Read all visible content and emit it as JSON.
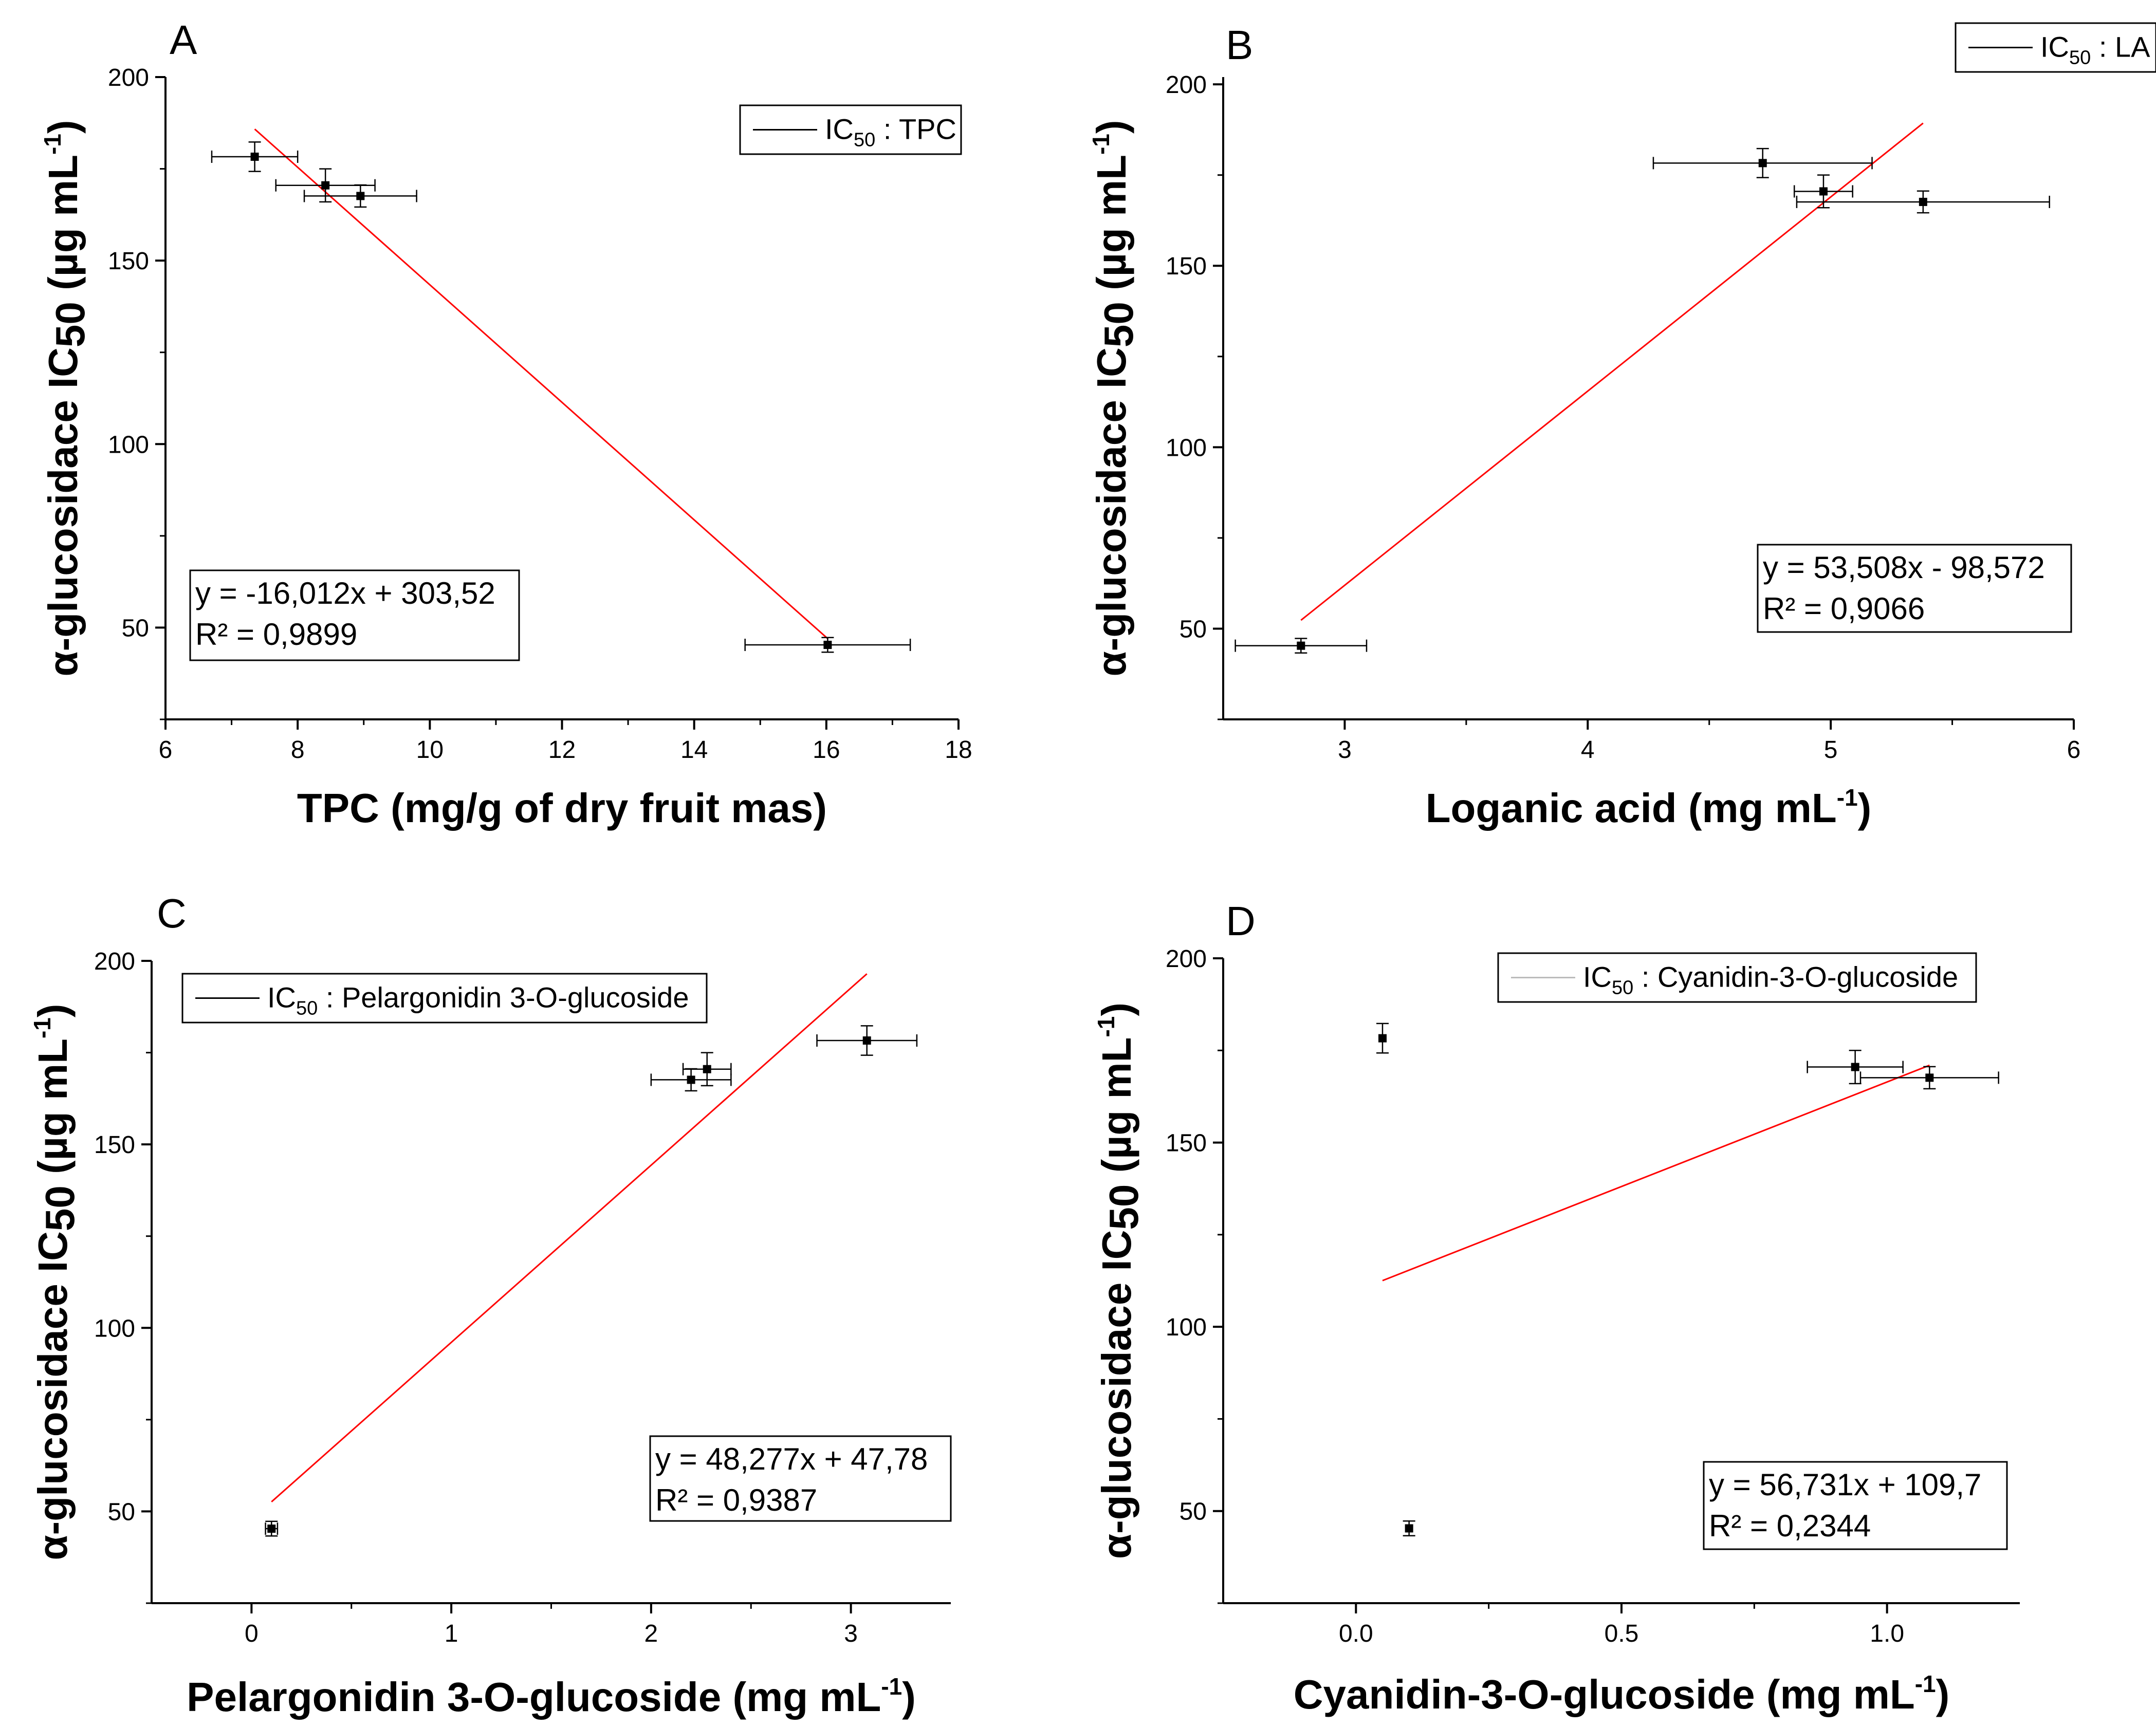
{
  "figure": {
    "y_axis_title_prefix": "α-glucosidace IC",
    "y_axis_title_sub": "50",
    "y_axis_title_unit": " (µg mL",
    "y_axis_title_unit_sup": "-1",
    "y_axis_title_close": ")",
    "colors": {
      "fit_line": "#ff0000",
      "points": "#000000",
      "axes": "#000000",
      "legend_line": "#000000",
      "legend_line_d": "#bbbbbb"
    }
  },
  "chart_data": [
    {
      "panel": "A",
      "type": "scatter",
      "x_title_text": "TPC (mg/g of dry fruit mas)",
      "x_title_sup": "",
      "x_title_close": "",
      "xlim": [
        6,
        18
      ],
      "ylim": [
        25,
        200
      ],
      "xticks": [
        6,
        8,
        10,
        12,
        14,
        16,
        18
      ],
      "xtick_labels": [
        "6",
        "8",
        "10",
        "12",
        "14",
        "16",
        "18"
      ],
      "yticks": [
        50,
        100,
        150,
        200
      ],
      "ytick_labels": [
        "50",
        "100",
        "150",
        "200"
      ],
      "legend": {
        "prefix": "IC",
        "sub": "50",
        "suffix": " : TPC"
      },
      "points": [
        {
          "x": 7.35,
          "y": 178.3,
          "xerr": 0.65,
          "yerr": 4.0
        },
        {
          "x": 8.42,
          "y": 170.5,
          "xerr": 0.75,
          "yerr": 4.5
        },
        {
          "x": 8.95,
          "y": 167.6,
          "xerr": 0.85,
          "yerr": 3.0
        },
        {
          "x": 16.02,
          "y": 45.3,
          "xerr": 1.25,
          "yerr": 2.0
        }
      ],
      "fit": {
        "slope": -16.012,
        "intercept": 303.52,
        "x_range": [
          7.35,
          16.02
        ]
      },
      "equation": "y = -16,012x + 303,52",
      "r2": "R² = 0,9899"
    },
    {
      "panel": "B",
      "type": "scatter",
      "x_title_text": "Loganic acid (mg mL",
      "x_title_sup": "-1",
      "x_title_close": ")",
      "xlim": [
        2.5,
        6
      ],
      "ylim": [
        25,
        202
      ],
      "xticks": [
        3,
        4,
        5,
        6
      ],
      "xtick_labels": [
        "3",
        "4",
        "5",
        "6"
      ],
      "yticks": [
        50,
        100,
        150,
        200
      ],
      "ytick_labels": [
        "50",
        "100",
        "150",
        "200"
      ],
      "legend": {
        "prefix": "IC",
        "sub": "50",
        "suffix": " : LA"
      },
      "points": [
        {
          "x": 2.82,
          "y": 45.3,
          "xerr": 0.27,
          "yerr": 2.0
        },
        {
          "x": 4.72,
          "y": 178.3,
          "xerr": 0.45,
          "yerr": 4.0
        },
        {
          "x": 4.97,
          "y": 170.5,
          "xerr": 0.12,
          "yerr": 4.5
        },
        {
          "x": 5.38,
          "y": 167.6,
          "xerr": 0.52,
          "yerr": 3.0
        }
      ],
      "fit": {
        "slope": 53.508,
        "intercept": -98.572,
        "x_range": [
          2.82,
          5.38
        ]
      },
      "equation": "y = 53,508x - 98,572",
      "r2": "R² = 0,9066"
    },
    {
      "panel": "C",
      "type": "scatter",
      "x_title_text": "Pelargonidin 3-O-glucoside (mg mL",
      "x_title_sup": "-1",
      "x_title_close": ")",
      "xlim": [
        -0.5,
        3.5
      ],
      "ylim": [
        25,
        200
      ],
      "xticks": [
        0,
        1,
        2,
        3
      ],
      "xtick_labels": [
        "0",
        "1",
        "2",
        "3"
      ],
      "yticks": [
        50,
        100,
        150,
        200
      ],
      "ytick_labels": [
        "50",
        "100",
        "150",
        "200"
      ],
      "legend": {
        "prefix": "IC",
        "sub": "50",
        "suffix": " : Pelargonidin 3-O-glucoside"
      },
      "points": [
        {
          "x": 0.1,
          "y": 45.3,
          "xerr": 0.03,
          "yerr": 2.0
        },
        {
          "x": 2.2,
          "y": 167.6,
          "xerr": 0.2,
          "yerr": 3.0
        },
        {
          "x": 2.28,
          "y": 170.5,
          "xerr": 0.12,
          "yerr": 4.5
        },
        {
          "x": 3.08,
          "y": 178.3,
          "xerr": 0.25,
          "yerr": 4.0
        }
      ],
      "fit": {
        "slope": 48.277,
        "intercept": 47.78,
        "x_range": [
          0.1,
          3.08
        ]
      },
      "equation": "y = 48,277x + 47,78",
      "r2": "R² = 0,9387"
    },
    {
      "panel": "D",
      "type": "scatter",
      "x_title_text": "Cyanidin-3-O-glucoside (mg mL",
      "x_title_sup": "-1",
      "x_title_close": ")",
      "xlim": [
        -0.25,
        1.25
      ],
      "ylim": [
        25,
        200
      ],
      "xticks": [
        0.0,
        0.5,
        1.0
      ],
      "xtick_labels": [
        "0.0",
        "0.5",
        "1.0"
      ],
      "yticks": [
        50,
        100,
        150,
        200
      ],
      "ytick_labels": [
        "50",
        "100",
        "150",
        "200"
      ],
      "legend": {
        "prefix": "IC",
        "sub": "50",
        "suffix": " : Cyanidin-3-O-glucoside"
      },
      "points": [
        {
          "x": 0.05,
          "y": 178.3,
          "xerr": 0.0,
          "yerr": 4.0
        },
        {
          "x": 0.1,
          "y": 45.3,
          "xerr": 0.0,
          "yerr": 2.0
        },
        {
          "x": 0.94,
          "y": 170.5,
          "xerr": 0.09,
          "yerr": 4.5
        },
        {
          "x": 1.08,
          "y": 167.6,
          "xerr": 0.13,
          "yerr": 3.0
        }
      ],
      "fit": {
        "slope": 56.731,
        "intercept": 109.7,
        "x_range": [
          0.05,
          1.08
        ]
      },
      "equation": "y = 56,731x + 109,7",
      "r2": "R² = 0,2344"
    }
  ]
}
